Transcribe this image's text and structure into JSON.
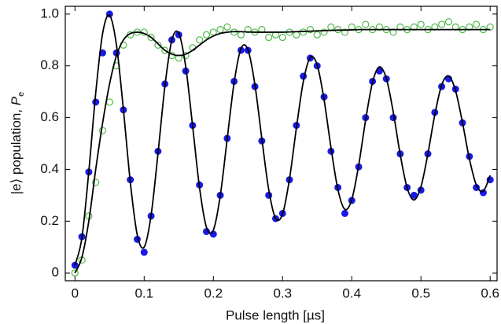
{
  "chart_data": {
    "type": "scatter",
    "xlabel": "Pulse length [µs]",
    "ylabel": "|e⟩  population,  ",
    "ylabel_symbol": "P",
    "ylabel_subscript": "e",
    "xlim": [
      -0.014,
      0.61
    ],
    "ylim": [
      -0.03,
      1.03
    ],
    "xticks": [
      0,
      0.1,
      0.2,
      0.3,
      0.4,
      0.5,
      0.6
    ],
    "yticks": [
      0,
      0.2,
      0.4,
      0.6,
      0.8,
      {
        "value": 1,
        "label": "1.0"
      }
    ],
    "x": [
      0,
      0.01,
      0.02,
      0.03,
      0.04,
      0.05,
      0.06,
      0.07,
      0.08,
      0.09,
      0.1,
      0.11,
      0.12,
      0.13,
      0.14,
      0.15,
      0.16,
      0.17,
      0.18,
      0.19,
      0.2,
      0.21,
      0.22,
      0.23,
      0.24,
      0.25,
      0.26,
      0.27,
      0.28,
      0.29,
      0.3,
      0.31,
      0.32,
      0.33,
      0.34,
      0.35,
      0.36,
      0.37,
      0.38,
      0.39,
      0.4,
      0.41,
      0.42,
      0.43,
      0.44,
      0.45,
      0.46,
      0.47,
      0.48,
      0.49,
      0.5,
      0.51,
      0.52,
      0.53,
      0.54,
      0.55,
      0.56,
      0.57,
      0.58,
      0.59,
      0.6
    ],
    "series": [
      {
        "kind": "open",
        "color": "#4db848",
        "values": [
          0.0,
          0.05,
          0.22,
          0.35,
          0.55,
          0.66,
          0.8,
          0.88,
          0.92,
          0.93,
          0.93,
          0.91,
          0.88,
          0.86,
          0.84,
          0.83,
          0.84,
          0.87,
          0.9,
          0.92,
          0.93,
          0.94,
          0.95,
          0.93,
          0.92,
          0.94,
          0.93,
          0.94,
          0.91,
          0.92,
          0.91,
          0.93,
          0.92,
          0.93,
          0.94,
          0.92,
          0.93,
          0.95,
          0.94,
          0.93,
          0.95,
          0.94,
          0.96,
          0.94,
          0.95,
          0.94,
          0.93,
          0.95,
          0.94,
          0.95,
          0.96,
          0.94,
          0.95,
          0.96,
          0.97,
          0.95,
          0.94,
          0.95,
          0.96,
          0.94,
          0.95
        ]
      },
      {
        "kind": "filled",
        "color": "#1a1ae6",
        "values": [
          0.03,
          0.14,
          0.39,
          0.66,
          0.85,
          1.0,
          0.85,
          0.63,
          0.36,
          0.13,
          0.08,
          0.22,
          0.47,
          0.73,
          0.9,
          0.92,
          0.78,
          0.57,
          0.34,
          0.16,
          0.15,
          0.3,
          0.52,
          0.74,
          0.86,
          0.86,
          0.72,
          0.51,
          0.3,
          0.21,
          0.23,
          0.36,
          0.57,
          0.76,
          0.83,
          0.8,
          0.68,
          0.47,
          0.33,
          0.23,
          0.28,
          0.41,
          0.6,
          0.74,
          0.78,
          0.75,
          0.6,
          0.46,
          0.33,
          0.3,
          0.32,
          0.46,
          0.62,
          0.72,
          0.75,
          0.71,
          0.58,
          0.45,
          0.33,
          0.31,
          0.36
        ]
      },
      {
        "kind": "line",
        "color": "#000000",
        "values": [
          0,
          0.06,
          0.2,
          0.4,
          0.58,
          0.73,
          0.84,
          0.9,
          0.925,
          0.93,
          0.925,
          0.91,
          0.885,
          0.86,
          0.845,
          0.84,
          0.845,
          0.86,
          0.88,
          0.9,
          0.915,
          0.925,
          0.93,
          0.932,
          0.932,
          0.931,
          0.93,
          0.93,
          0.93,
          0.93,
          0.93,
          0.931,
          0.932,
          0.933,
          0.934,
          0.935,
          0.936,
          0.937,
          0.938,
          0.938,
          0.939,
          0.94,
          0.94,
          0.94,
          0.94,
          0.94,
          0.94,
          0.94,
          0.94,
          0.94,
          0.94,
          0.94,
          0.94,
          0.94,
          0.94,
          0.94,
          0.94,
          0.94,
          0.94,
          0.94,
          0.94
        ]
      },
      {
        "kind": "line",
        "color": "#000000",
        "values": [
          0.03,
          0.135,
          0.392,
          0.695,
          0.926,
          0.995,
          0.88,
          0.631,
          0.35,
          0.147,
          0.1,
          0.223,
          0.462,
          0.722,
          0.899,
          0.926,
          0.798,
          0.568,
          0.33,
          0.177,
          0.166,
          0.299,
          0.518,
          0.735,
          0.867,
          0.862,
          0.728,
          0.52,
          0.322,
          0.211,
          0.228,
          0.363,
          0.56,
          0.739,
          0.832,
          0.804,
          0.669,
          0.484,
          0.322,
          0.246,
          0.283,
          0.416,
          0.59,
          0.736,
          0.796,
          0.751,
          0.621,
          0.458,
          0.329,
          0.282,
          0.333,
          0.46,
          0.611,
          0.726,
          0.761,
          0.704,
          0.581,
          0.441,
          0.34,
          0.316,
          0.377
        ]
      }
    ]
  }
}
